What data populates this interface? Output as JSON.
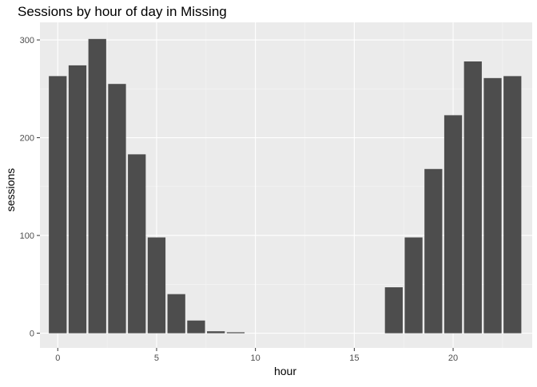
{
  "chart_data": {
    "type": "bar",
    "title": "Sessions by hour of day in Missing",
    "xlabel": "hour",
    "ylabel": "sessions",
    "x": [
      0,
      1,
      2,
      3,
      4,
      5,
      6,
      7,
      8,
      9,
      10,
      11,
      12,
      13,
      14,
      15,
      16,
      17,
      18,
      19,
      20,
      21,
      22,
      23
    ],
    "values": [
      263,
      274,
      301,
      255,
      183,
      98,
      40,
      13,
      2,
      1,
      0,
      0,
      0,
      0,
      0,
      0,
      0,
      47,
      98,
      168,
      223,
      278,
      261,
      263
    ],
    "xlim": [
      -0.9,
      24.0
    ],
    "ylim": [
      -15,
      318
    ],
    "xticks": [
      0,
      5,
      10,
      15,
      20
    ],
    "yticks": [
      0,
      100,
      200,
      300
    ],
    "grid": true,
    "colors": {
      "bar": "#4d4d4d",
      "panel": "#ebebeb",
      "grid_major": "#ffffff",
      "grid_minor": "#f5f5f5"
    }
  }
}
